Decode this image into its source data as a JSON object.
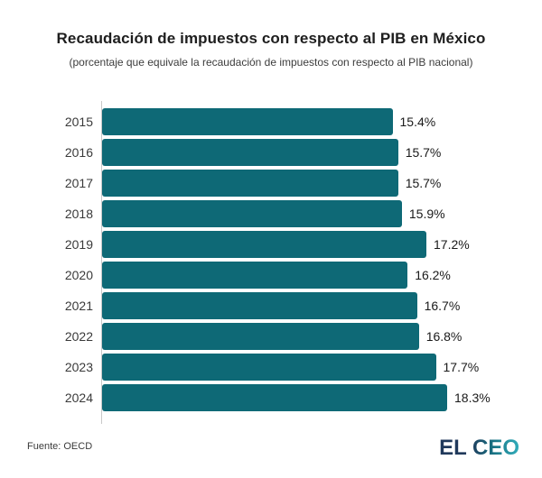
{
  "header": {
    "title": "Recaudación de impuestos con respecto al PIB en México",
    "subtitle": "(porcentaje que equivale la recaudación de impuestos con respecto al PIB nacional)"
  },
  "chart_data": {
    "type": "bar",
    "orientation": "horizontal",
    "title": "Recaudación de impuestos con respecto al PIB en México",
    "subtitle": "(porcentaje que equivale la recaudación de impuestos con respecto al PIB nacional)",
    "categories": [
      "2015",
      "2016",
      "2017",
      "2018",
      "2019",
      "2020",
      "2021",
      "2022",
      "2023",
      "2024"
    ],
    "values": [
      15.4,
      15.7,
      15.7,
      15.9,
      17.2,
      16.2,
      16.7,
      16.8,
      17.7,
      18.3
    ],
    "value_labels": [
      "15.4%",
      "15.7%",
      "15.7%",
      "15.9%",
      "17.2%",
      "16.2%",
      "16.7%",
      "16.8%",
      "17.7%",
      "18.3%"
    ],
    "xlabel": "",
    "ylabel": "",
    "xlim": [
      0,
      18.3
    ],
    "grid": false,
    "legend": "none",
    "bar_color": "#0e6976",
    "value_label_position": "outside-end"
  },
  "footer": {
    "source": "Fuente: OECD",
    "brand": "EL CEO"
  },
  "colors": {
    "bar": "#0e6976",
    "axis_line": "#c9c9c9",
    "title_text": "#1e1e1e",
    "brand_gradient_start": "#20395b",
    "brand_gradient_mid": "#187283",
    "brand_gradient_end": "#32aebc"
  }
}
